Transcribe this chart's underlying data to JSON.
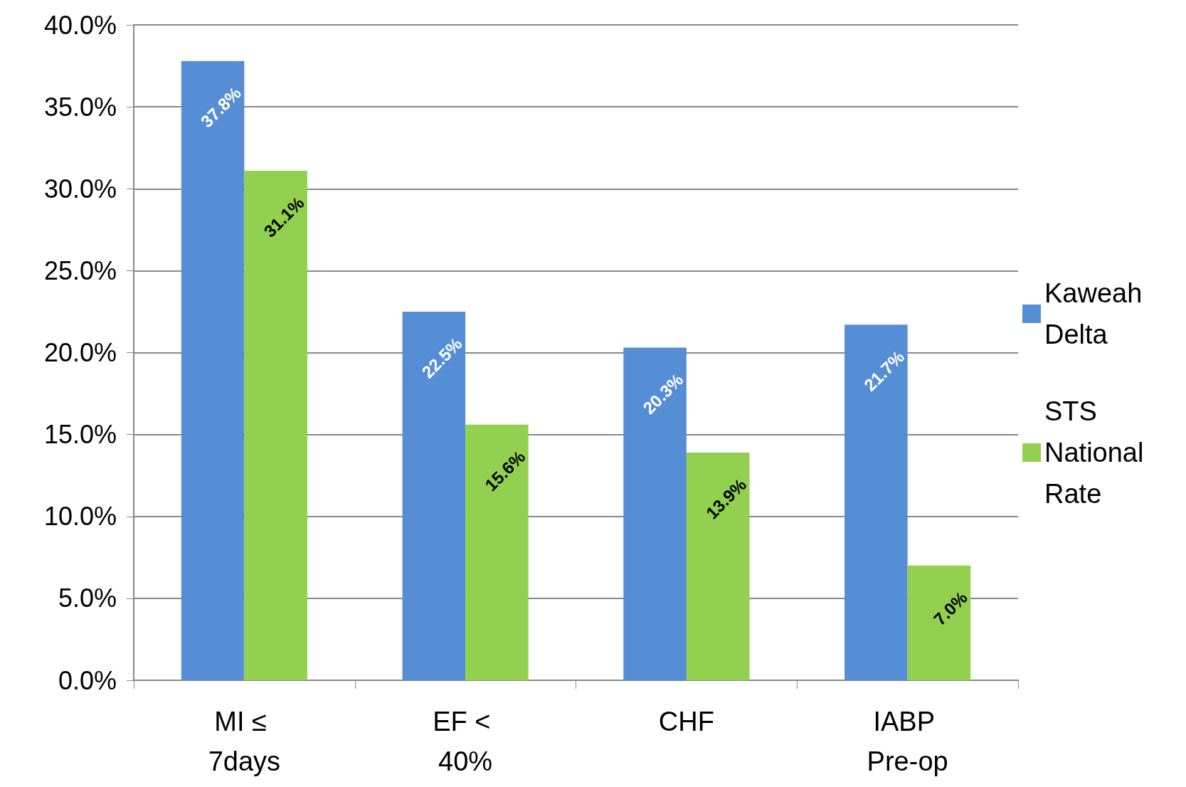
{
  "chart_data": {
    "type": "bar",
    "categories": [
      "MI ≤ 7days",
      "EF < 40%",
      "CHF",
      "IABP Pre-op"
    ],
    "series": [
      {
        "name": "Kaweah Delta",
        "color": "#558ed5",
        "values": [
          37.8,
          22.5,
          20.3,
          21.7
        ],
        "value_labels": [
          "37.8%",
          "22.5%",
          "20.3%",
          "21.7%"
        ]
      },
      {
        "name": "STS National Rate",
        "color": "#92d050",
        "values": [
          31.1,
          15.6,
          13.9,
          7.0
        ],
        "value_labels": [
          "31.1%",
          "15.6%",
          "13.9%",
          "7.0%"
        ]
      }
    ],
    "ylim": [
      0,
      40
    ],
    "yticks": [
      {
        "value": 0,
        "label": "0.0%"
      },
      {
        "value": 5,
        "label": "5.0%"
      },
      {
        "value": 10,
        "label": "10.0%"
      },
      {
        "value": 15,
        "label": "15.0%"
      },
      {
        "value": 20,
        "label": "20.0%"
      },
      {
        "value": 25,
        "label": "25.0%"
      },
      {
        "value": 30,
        "label": "30.0%"
      },
      {
        "value": 35,
        "label": "35.0%"
      },
      {
        "value": 40,
        "label": "40.0%"
      }
    ],
    "grid": "y",
    "legend": "right"
  }
}
